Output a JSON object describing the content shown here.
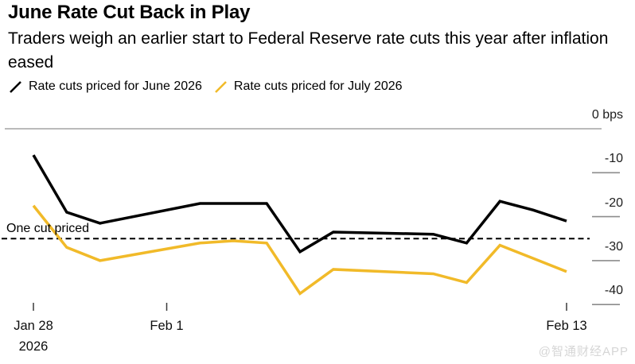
{
  "header": {
    "title": "June Rate Cut Back in Play",
    "subtitle": "Traders weigh an earlier start to Federal Reserve rate cuts this year after inflation eased"
  },
  "legend": [
    {
      "label": "Rate cuts priced for June 2026",
      "color": "#000000"
    },
    {
      "label": "Rate cuts priced for July 2026",
      "color": "#F1BA29"
    }
  ],
  "chart_data": {
    "type": "line",
    "unit": "bps",
    "x_dates": [
      "Jan 28",
      "Jan 29",
      "Jan 30",
      "Feb 2",
      "Feb 3",
      "Feb 4",
      "Feb 5",
      "Feb 6",
      "Feb 9",
      "Feb 10",
      "Feb 11",
      "Feb 12",
      "Feb 13"
    ],
    "day_offsets": [
      0,
      1,
      2,
      5,
      6,
      7,
      8,
      9,
      12,
      13,
      14,
      15,
      16
    ],
    "series": [
      {
        "name": "Rate cuts priced for June 2026",
        "color": "#000000",
        "values": [
          -6,
          -19,
          -21.5,
          -17,
          -17,
          -17,
          -28,
          -23.5,
          -24,
          -26,
          -16.5,
          -18.5,
          -21
        ]
      },
      {
        "name": "Rate cuts priced for July 2026",
        "color": "#F1BA29",
        "values": [
          -17.5,
          -27,
          -30,
          -26,
          -25.5,
          -26,
          -37.5,
          -32,
          -33,
          -35,
          -26.5,
          -29.5,
          -32.5
        ]
      }
    ],
    "y_axis": {
      "top_label": "0 bps",
      "ticks": [
        -10,
        -20,
        -30,
        -40
      ],
      "range": [
        0,
        -42
      ]
    },
    "x_ticks": [
      {
        "line1": "Jan 28",
        "line2": "2026",
        "day": 0
      },
      {
        "line1": "Feb 1",
        "line2": "",
        "day": 4
      },
      {
        "line1": "Feb 13",
        "line2": "",
        "day": 16
      }
    ],
    "reference_line": {
      "label": "One cut priced",
      "value": -25,
      "style": "dashed"
    },
    "grid": "off",
    "legend_position": "top"
  },
  "watermark": "@智通财经APP"
}
